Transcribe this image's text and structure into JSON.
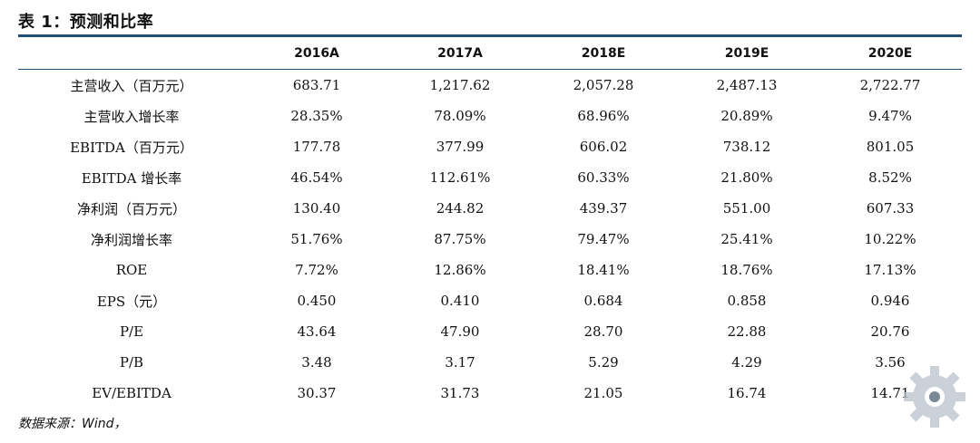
{
  "title": "表 1：预测和比率",
  "columns": [
    "",
    "2016A",
    "2017A",
    "2018E",
    "2019E",
    "2020E"
  ],
  "rows": [
    [
      "主营收入（百万元）",
      "683.71",
      "1,217.62",
      "2,057.28",
      "2,487.13",
      "2,722.77"
    ],
    [
      "主营收入增长率",
      "28.35%",
      "78.09%",
      "68.96%",
      "20.89%",
      "9.47%"
    ],
    [
      "EBITDA（百万元）",
      "177.78",
      "377.99",
      "606.02",
      "738.12",
      "801.05"
    ],
    [
      "EBITDA 增长率",
      "46.54%",
      "112.61%",
      "60.33%",
      "21.80%",
      "8.52%"
    ],
    [
      "净利润（百万元）",
      "130.40",
      "244.82",
      "439.37",
      "551.00",
      "607.33"
    ],
    [
      "净利润增长率",
      "51.76%",
      "87.75%",
      "79.47%",
      "25.41%",
      "10.22%"
    ],
    [
      "ROE",
      "7.72%",
      "12.86%",
      "18.41%",
      "18.76%",
      "17.13%"
    ],
    [
      "EPS（元）",
      "0.450",
      "0.410",
      "0.684",
      "0.858",
      "0.946"
    ],
    [
      "P/E",
      "43.64",
      "47.90",
      "28.70",
      "22.88",
      "20.76"
    ],
    [
      "P/B",
      "3.48",
      "3.17",
      "5.29",
      "4.29",
      "3.56"
    ],
    [
      "EV/EBITDA",
      "30.37",
      "31.73",
      "21.05",
      "16.74",
      "14.71"
    ]
  ],
  "source": "数据来源：Wind，",
  "watermark_icon": "gear-logo-icon",
  "colors": {
    "rule": "#1f4e79"
  }
}
